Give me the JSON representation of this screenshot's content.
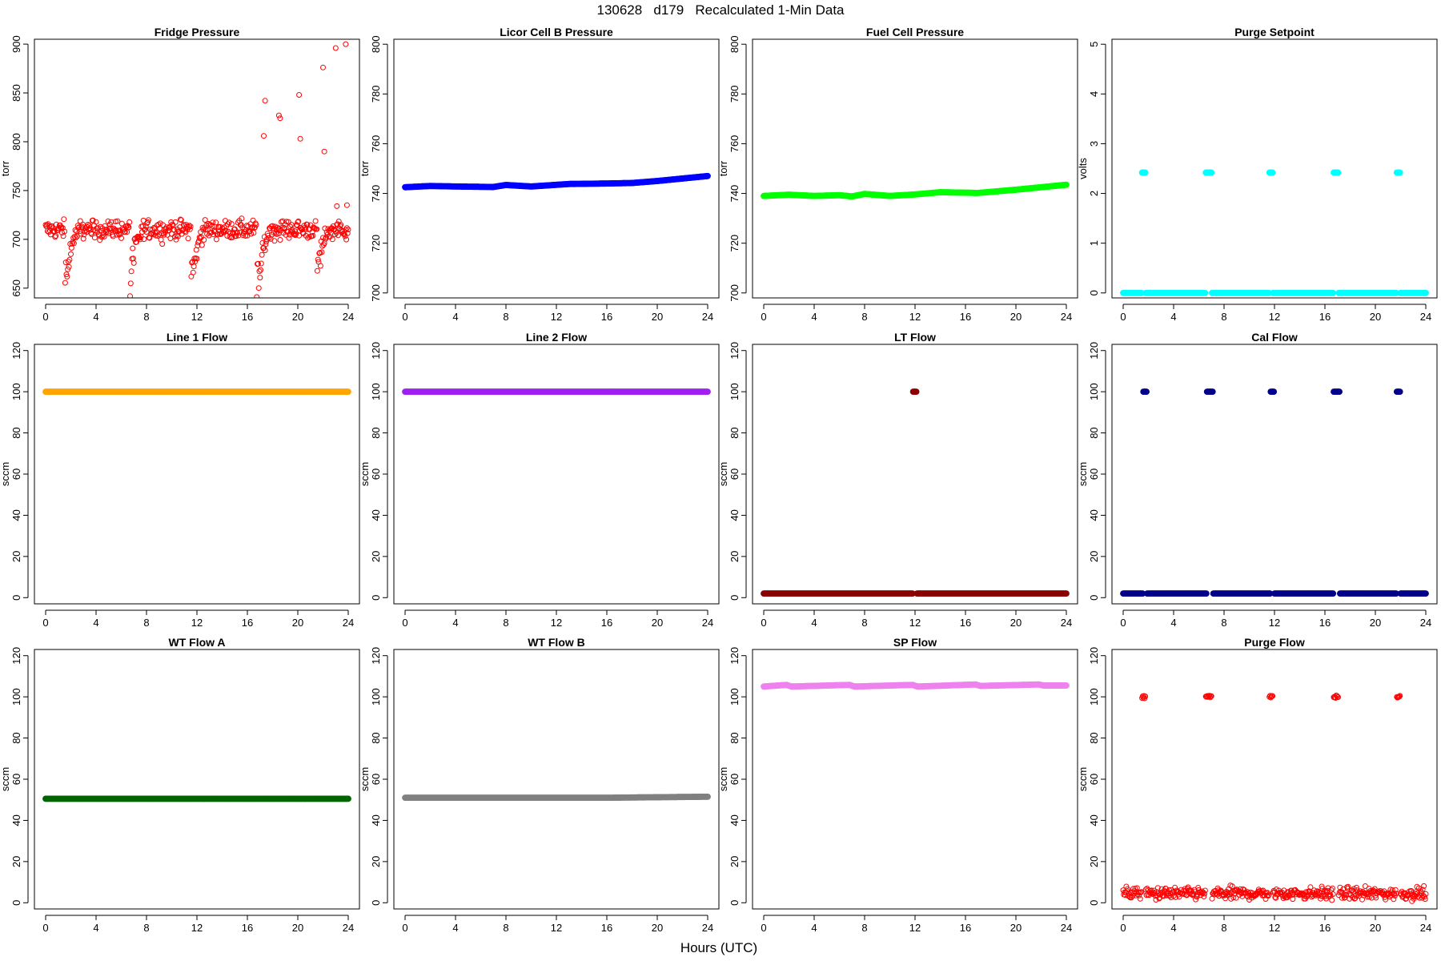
{
  "figure": {
    "title": "130628   d179   Recalculated 1-Min Data",
    "xlabel": "Hours (UTC)"
  },
  "chart_data": [
    {
      "type": "scatter",
      "title": "Fridge Pressure",
      "ylabel": "torr",
      "color": "#ff0000",
      "marker": "open-circle",
      "xlim": [
        0,
        24
      ],
      "ylim": [
        640,
        905
      ],
      "xticks": [
        0,
        4,
        8,
        12,
        16,
        20,
        24
      ],
      "yticks": [
        650,
        700,
        750,
        800,
        850,
        900
      ],
      "pattern": {
        "kind": "noisy-baseline",
        "baseline": 710,
        "spread": 8,
        "dips": [
          [
            1.7,
            645
          ],
          [
            6.8,
            648
          ],
          [
            11.7,
            650
          ],
          [
            16.9,
            640
          ],
          [
            21.7,
            668
          ]
        ]
      },
      "points": [
        [
          17.4,
          842
        ],
        [
          17.3,
          806
        ],
        [
          18.5,
          827
        ],
        [
          18.6,
          824
        ],
        [
          20.1,
          848
        ],
        [
          20.2,
          803
        ],
        [
          22.0,
          876
        ],
        [
          22.1,
          790
        ],
        [
          23.0,
          896
        ],
        [
          23.8,
          900
        ],
        [
          23.1,
          734
        ],
        [
          23.9,
          735
        ]
      ]
    },
    {
      "type": "scatter",
      "title": "Licor Cell B Pressure",
      "ylabel": "torr",
      "color": "#0000ff",
      "marker": "filled-circle",
      "xlim": [
        0,
        24
      ],
      "ylim": [
        698,
        802
      ],
      "xticks": [
        0,
        4,
        8,
        12,
        16,
        20,
        24
      ],
      "yticks": [
        700,
        720,
        740,
        760,
        780,
        800
      ],
      "pattern": {
        "kind": "trend",
        "knots": [
          [
            0,
            742.5
          ],
          [
            2,
            743
          ],
          [
            4,
            742.8
          ],
          [
            7,
            742.6
          ],
          [
            8,
            743.4
          ],
          [
            10,
            742.8
          ],
          [
            13,
            743.8
          ],
          [
            16,
            744
          ],
          [
            18,
            744.2
          ],
          [
            20,
            745
          ],
          [
            24,
            747
          ]
        ]
      }
    },
    {
      "type": "scatter",
      "title": "Fuel Cell Pressure",
      "ylabel": "torr",
      "color": "#00ff00",
      "marker": "filled-circle",
      "xlim": [
        0,
        24
      ],
      "ylim": [
        698,
        802
      ],
      "xticks": [
        0,
        4,
        8,
        12,
        16,
        20,
        24
      ],
      "yticks": [
        700,
        720,
        740,
        760,
        780,
        800
      ],
      "pattern": {
        "kind": "trend",
        "knots": [
          [
            0,
            739
          ],
          [
            2,
            739.5
          ],
          [
            4,
            739
          ],
          [
            6,
            739.3
          ],
          [
            7,
            738.8
          ],
          [
            8,
            739.8
          ],
          [
            10,
            739
          ],
          [
            12,
            739.6
          ],
          [
            14,
            740.5
          ],
          [
            17,
            740.2
          ],
          [
            20,
            741.5
          ],
          [
            24,
            743.5
          ]
        ]
      }
    },
    {
      "type": "scatter",
      "title": "Purge Setpoint",
      "ylabel": "volts",
      "color": "#00ffff",
      "marker": "filled-circle",
      "xlim": [
        0,
        24
      ],
      "ylim": [
        -0.1,
        5.1
      ],
      "xticks": [
        0,
        4,
        8,
        12,
        16,
        20,
        24
      ],
      "yticks": [
        0,
        1,
        2,
        3,
        4,
        5
      ],
      "pattern": {
        "kind": "steps",
        "baseline": 0,
        "level": 2.42,
        "pulses": [
          [
            1.5,
            1.8
          ],
          [
            6.5,
            7.0
          ],
          [
            11.6,
            11.9
          ],
          [
            16.7,
            17.1
          ],
          [
            21.7,
            22.0
          ]
        ]
      }
    },
    {
      "type": "scatter",
      "title": "Line 1 Flow",
      "ylabel": "sccm",
      "color": "#ffa500",
      "marker": "filled-circle",
      "xlim": [
        0,
        24
      ],
      "ylim": [
        -3,
        123
      ],
      "xticks": [
        0,
        4,
        8,
        12,
        16,
        20,
        24
      ],
      "yticks": [
        0,
        20,
        40,
        60,
        80,
        100,
        120
      ],
      "pattern": {
        "kind": "constant",
        "value": 100
      }
    },
    {
      "type": "scatter",
      "title": "Line 2 Flow",
      "ylabel": "sccm",
      "color": "#a020f0",
      "marker": "filled-circle",
      "xlim": [
        0,
        24
      ],
      "ylim": [
        -3,
        123
      ],
      "xticks": [
        0,
        4,
        8,
        12,
        16,
        20,
        24
      ],
      "yticks": [
        0,
        20,
        40,
        60,
        80,
        100,
        120
      ],
      "pattern": {
        "kind": "constant",
        "value": 100
      }
    },
    {
      "type": "scatter",
      "title": "LT Flow",
      "ylabel": "sccm",
      "color": "#8b0000",
      "marker": "filled-circle",
      "xlim": [
        0,
        24
      ],
      "ylim": [
        -3,
        123
      ],
      "xticks": [
        0,
        4,
        8,
        12,
        16,
        20,
        24
      ],
      "yticks": [
        0,
        20,
        40,
        60,
        80,
        100,
        120
      ],
      "pattern": {
        "kind": "steps",
        "baseline": 2,
        "level": 100,
        "pulses": [
          [
            11.85,
            12.15
          ]
        ]
      }
    },
    {
      "type": "scatter",
      "title": "Cal Flow",
      "ylabel": "sccm",
      "color": "#00008b",
      "marker": "filled-circle",
      "xlim": [
        0,
        24
      ],
      "ylim": [
        -3,
        123
      ],
      "xticks": [
        0,
        4,
        8,
        12,
        16,
        20,
        24
      ],
      "yticks": [
        0,
        20,
        40,
        60,
        80,
        100,
        120
      ],
      "pattern": {
        "kind": "steps",
        "baseline": 2,
        "level": 100,
        "pulses": [
          [
            1.6,
            1.9
          ],
          [
            6.6,
            7.1
          ],
          [
            11.7,
            12.0
          ],
          [
            16.7,
            17.2
          ],
          [
            21.7,
            22.0
          ]
        ]
      }
    },
    {
      "type": "scatter",
      "title": "WT Flow A",
      "ylabel": "sccm",
      "color": "#006400",
      "marker": "filled-circle",
      "xlim": [
        0,
        24
      ],
      "ylim": [
        -3,
        123
      ],
      "xticks": [
        0,
        4,
        8,
        12,
        16,
        20,
        24
      ],
      "yticks": [
        0,
        20,
        40,
        60,
        80,
        100,
        120
      ],
      "pattern": {
        "kind": "constant",
        "value": 50.5
      }
    },
    {
      "type": "scatter",
      "title": "WT Flow B",
      "ylabel": "sccm",
      "color": "#808080",
      "marker": "filled-circle",
      "xlim": [
        0,
        24
      ],
      "ylim": [
        -3,
        123
      ],
      "xticks": [
        0,
        4,
        8,
        12,
        16,
        20,
        24
      ],
      "yticks": [
        0,
        20,
        40,
        60,
        80,
        100,
        120
      ],
      "pattern": {
        "kind": "trend",
        "knots": [
          [
            0,
            51
          ],
          [
            16,
            51
          ],
          [
            24,
            51.5
          ]
        ]
      }
    },
    {
      "type": "scatter",
      "title": "SP Flow",
      "ylabel": "sccm",
      "color": "#ee82ee",
      "marker": "filled-circle",
      "xlim": [
        0,
        24
      ],
      "ylim": [
        -3,
        123
      ],
      "xticks": [
        0,
        4,
        8,
        12,
        16,
        20,
        24
      ],
      "yticks": [
        0,
        20,
        40,
        60,
        80,
        100,
        120
      ],
      "pattern": {
        "kind": "trend",
        "knots": [
          [
            0,
            105
          ],
          [
            1.8,
            105.8
          ],
          [
            2.2,
            105
          ],
          [
            6.8,
            105.8
          ],
          [
            7.2,
            105
          ],
          [
            11.8,
            105.8
          ],
          [
            12.2,
            105
          ],
          [
            16.8,
            106
          ],
          [
            17.2,
            105.3
          ],
          [
            21.8,
            106
          ],
          [
            22.2,
            105.5
          ],
          [
            24,
            105.5
          ]
        ]
      }
    },
    {
      "type": "scatter",
      "title": "Purge Flow",
      "ylabel": "sccm",
      "color": "#ff0000",
      "marker": "open-circle",
      "xlim": [
        0,
        24
      ],
      "ylim": [
        -3,
        123
      ],
      "xticks": [
        0,
        4,
        8,
        12,
        16,
        20,
        24
      ],
      "yticks": [
        0,
        20,
        40,
        60,
        80,
        100,
        120
      ],
      "pattern": {
        "kind": "noisy-steps",
        "baseline": 4.5,
        "spread": 2.5,
        "level": 100,
        "pulses": [
          [
            1.5,
            1.8
          ],
          [
            6.5,
            7.0
          ],
          [
            11.6,
            11.9
          ],
          [
            16.7,
            17.1
          ],
          [
            21.7,
            22.0
          ]
        ]
      }
    }
  ]
}
